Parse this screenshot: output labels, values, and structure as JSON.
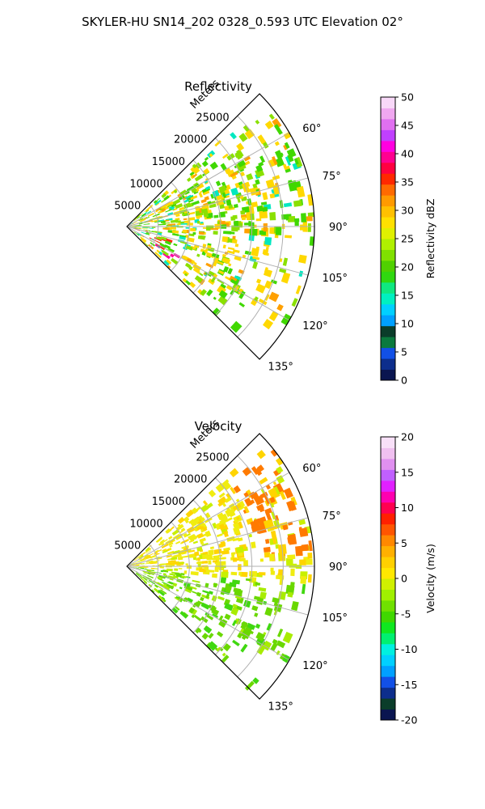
{
  "figure": {
    "title": "SKYLER-HU  SN14_202  0328_0.593 UTC Elevation 02°"
  },
  "chart_data": [
    {
      "type": "polar-sector",
      "title": "Reflectivity",
      "radial_label": "Meters",
      "r_ticks": [
        "5000",
        "10000",
        "15000",
        "20000",
        "25000"
      ],
      "r_values": [
        5000,
        10000,
        15000,
        20000,
        25000
      ],
      "r_max": 30000,
      "theta_range": [
        45,
        135
      ],
      "theta_ticks": [
        "60°",
        "75°",
        "90°",
        "105°",
        "120°",
        "135°"
      ],
      "theta_values": [
        60,
        75,
        90,
        105,
        120,
        135
      ],
      "grid": true,
      "colorbar": {
        "label": "Reflectivity dBZ",
        "min": 0,
        "max": 50,
        "ticks": [
          "0",
          "5",
          "10",
          "15",
          "20",
          "25",
          "30",
          "35",
          "40",
          "45",
          "50"
        ],
        "tick_values": [
          0,
          5,
          10,
          15,
          20,
          25,
          30,
          35,
          40,
          45,
          50
        ],
        "colors": [
          "#0a1550",
          "#0d2e8c",
          "#1250e6",
          "#0b7a3d",
          "#0b3d2a",
          "#00a0ff",
          "#00d0ff",
          "#00f0c0",
          "#10e880",
          "#30d810",
          "#50d000",
          "#80e000",
          "#b0f000",
          "#e0f000",
          "#ffe000",
          "#ffc000",
          "#ff9a00",
          "#ff6a00",
          "#ff2800",
          "#ff0040",
          "#ff0090",
          "#ff00e0",
          "#c040ff",
          "#e070f0",
          "#f0a8f0",
          "#f8d8f8"
        ]
      }
    },
    {
      "type": "polar-sector",
      "title": "Velocity",
      "radial_label": "Meters",
      "r_ticks": [
        "5000",
        "10000",
        "15000",
        "20000",
        "25000"
      ],
      "r_values": [
        5000,
        10000,
        15000,
        20000,
        25000
      ],
      "r_max": 30000,
      "theta_range": [
        45,
        135
      ],
      "theta_ticks": [
        "60°",
        "75°",
        "90°",
        "105°",
        "120°",
        "135°"
      ],
      "theta_values": [
        60,
        75,
        90,
        105,
        120,
        135
      ],
      "grid": true,
      "colorbar": {
        "label": "Velocity (m/s)",
        "min": -20,
        "max": 20,
        "ticks": [
          "-20",
          "-15",
          "-10",
          "-5",
          "0",
          "5",
          "10",
          "15",
          "20"
        ],
        "tick_values": [
          -20,
          -15,
          -10,
          -5,
          0,
          5,
          10,
          15,
          20
        ],
        "colors": [
          "#0a1550",
          "#0b3d2a",
          "#0d2e8c",
          "#1250e6",
          "#00a0ff",
          "#00d0ff",
          "#00f0e0",
          "#00f070",
          "#10e820",
          "#40d800",
          "#70e000",
          "#a0f000",
          "#d0f000",
          "#ffe800",
          "#ffd000",
          "#ffb000",
          "#ff8800",
          "#ff5500",
          "#ff2000",
          "#ff0050",
          "#ff00b0",
          "#e020ff",
          "#c060ff",
          "#e090f0",
          "#f0c0f0",
          "#f8e0f8"
        ]
      }
    }
  ]
}
